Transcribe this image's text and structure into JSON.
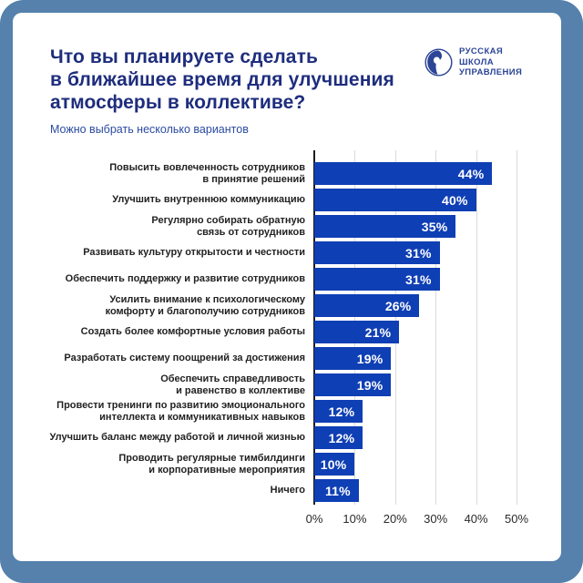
{
  "frame": {
    "border_color": "#5581AC",
    "card_color": "#FFFFFF"
  },
  "header": {
    "title": "Что вы планируете сделать\nв ближайшее время для улучшения\nатмосферы в коллективе?",
    "title_color": "#1E2D7D",
    "subtitle": "Можно выбрать несколько вариантов",
    "subtitle_color": "#2B4BA1",
    "logo": {
      "text": "РУССКАЯ\nШКОЛА\nУПРАВЛЕНИЯ",
      "color": "#2C4596",
      "icon": "globe-profile-icon"
    }
  },
  "chart_data": {
    "type": "bar",
    "orientation": "horizontal",
    "title": "Что вы планируете сделать в ближайшее время для улучшения атмосферы в коллективе?",
    "subtitle": "Можно выбрать несколько вариантов",
    "categories": [
      "Повысить вовлеченность сотрудников\nв принятие решений",
      "Улучшить внутреннюю коммуникацию",
      "Регулярно собирать обратную\nсвязь от сотрудников",
      "Развивать культуру открытости и честности",
      "Обеспечить поддержку и развитие сотрудников",
      "Усилить внимание к психологическому\nкомфорту и благополучию сотрудников",
      "Создать более комфортные условия работы",
      "Разработать систему поощрений за достижения",
      "Обеспечить справедливость\nи равенство в коллективе",
      "Провести тренинги по развитию эмоционального\nинтеллекта и коммуникативных навыков",
      "Улучшить баланс между работой и личной жизнью",
      "Проводить регулярные тимбилдинги\nи корпоративные мероприятия",
      "Ничего"
    ],
    "values": [
      44,
      40,
      35,
      31,
      31,
      26,
      21,
      19,
      19,
      12,
      12,
      10,
      11
    ],
    "value_labels": [
      "44%",
      "40%",
      "35%",
      "31%",
      "31%",
      "26%",
      "21%",
      "19%",
      "19%",
      "12%",
      "12%",
      "10%",
      "11%"
    ],
    "xlim": [
      0,
      50
    ],
    "x_tick_values": [
      0,
      10,
      20,
      30,
      40,
      50
    ],
    "x_tick_labels": [
      "0%",
      "10%",
      "20%",
      "30%",
      "40%",
      "50%"
    ],
    "bar_color": "#0F3FB4",
    "value_label_color": "#FFFFFF",
    "grid": true,
    "gridline_color": "#DBDBDB",
    "axis_line_color": "#1C1C1C",
    "legend": false,
    "ylabel": "",
    "xlabel": ""
  }
}
